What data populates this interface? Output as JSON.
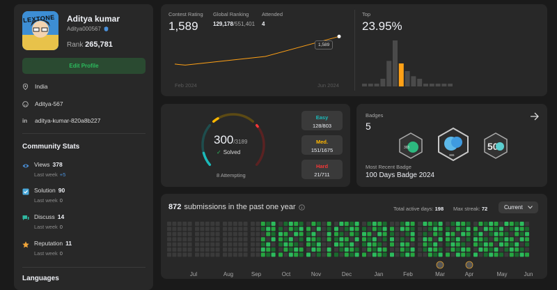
{
  "profile": {
    "name": "Aditya kumar",
    "username": "Aditya000567",
    "rank_label": "Rank",
    "rank_value": "265,781",
    "edit_label": "Edit Profile",
    "location": "India",
    "github": "Aditya-567",
    "linkedin": "aditya-kumar-820a8b227",
    "avatar_text": "LEXTONE"
  },
  "community": {
    "title": "Community Stats",
    "items": [
      {
        "icon": "eye-icon",
        "label": "Views",
        "value": "378",
        "sub": "Last week",
        "delta": "+5",
        "color": "#4a90d9"
      },
      {
        "icon": "check-square-icon",
        "label": "Solution",
        "value": "90",
        "sub": "Last week",
        "delta": "0",
        "color": "#4aa8d9"
      },
      {
        "icon": "discuss-icon",
        "label": "Discuss",
        "value": "14",
        "sub": "Last week",
        "delta": "0",
        "color": "#2fb8a0"
      },
      {
        "icon": "star-icon",
        "label": "Reputation",
        "value": "11",
        "sub": "Last week",
        "delta": "0",
        "color": "#f0a53a"
      }
    ]
  },
  "languages": {
    "title": "Languages"
  },
  "contest": {
    "rating_label": "Contest Rating",
    "rating_value": "1,589",
    "global_label": "Global Ranking",
    "global_value": "129,178",
    "global_total": "/551,401",
    "attended_label": "Attended",
    "attended_value": "4",
    "tooltip": "1,589",
    "x_start": "Feb 2024",
    "x_end": "Jun 2024",
    "top_label": "Top",
    "top_value": "23.95%",
    "accent": "#ffa116",
    "rating_series": [
      1480,
      1476,
      1510,
      1589
    ],
    "hist_values": [
      1,
      1,
      1,
      3,
      10,
      18,
      9,
      6,
      4,
      3,
      1,
      1,
      1,
      1,
      1
    ]
  },
  "solved": {
    "count": "300",
    "total": "/3189",
    "solved_label": "Solved",
    "attempting": "8 Attempting",
    "solved_fraction": 0.094,
    "easy": {
      "label": "Easy",
      "value": "128/803",
      "color": "#1cbaba"
    },
    "medium": {
      "label": "Med.",
      "value": "151/1675",
      "color": "#ffb700"
    },
    "hard": {
      "label": "Hard",
      "value": "21/711",
      "color": "#f63737"
    }
  },
  "badges": {
    "title": "Badges",
    "count": "5",
    "recent_label": "Most Recent Badge",
    "recent_name": "100 Days Badge 2024",
    "badge_1_label": "365",
    "badge_2_label": "365",
    "badge_3_label": "50"
  },
  "submissions": {
    "count": "872",
    "title_rest": "submissions in the past one year",
    "active_label": "Total active days:",
    "active_value": "198",
    "streak_label": "Max streak:",
    "streak_value": "72",
    "current_label": "Current",
    "months": [
      "Jul",
      "Aug",
      "Sep",
      "Oct",
      "Nov",
      "Dec",
      "Jan",
      "Feb",
      "Mar",
      "Apr",
      "May",
      "Jun"
    ],
    "green_columns": [
      17,
      18,
      19,
      20,
      21,
      22,
      23,
      24,
      25,
      26,
      27,
      29,
      30,
      31,
      32,
      33,
      34,
      35,
      36,
      37,
      38,
      39,
      40,
      42,
      43,
      44,
      46,
      47,
      48,
      49,
      50,
      51,
      52,
      53,
      54,
      55,
      56,
      57,
      58,
      59,
      60,
      61,
      62,
      63,
      64,
      65
    ]
  }
}
